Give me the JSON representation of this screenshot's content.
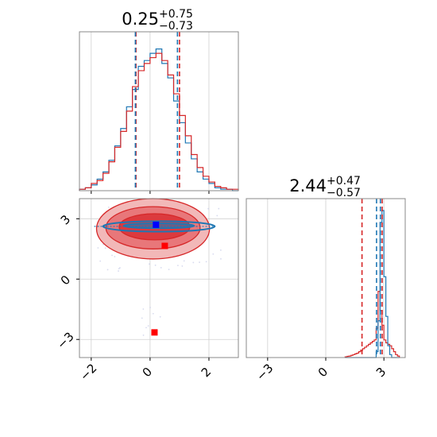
{
  "chart_data": {
    "type": "corner",
    "parameters": 2,
    "titles": [
      {
        "value": "0.25",
        "plus": "+0.75",
        "minus": "−0.73"
      },
      {
        "value": "2.44",
        "plus": "+0.47",
        "minus": "−0.57"
      }
    ],
    "x_param1": {
      "range": [
        -2.4,
        3.0
      ],
      "ticks": [
        -2,
        0,
        2
      ],
      "tick_labels": [
        "−2",
        "0",
        "2"
      ]
    },
    "y_param2": {
      "range": [
        -3.9,
        4.0
      ],
      "ticks": [
        -3,
        0,
        3
      ],
      "tick_labels": [
        "−3",
        "0",
        "3"
      ]
    },
    "x_param2": {
      "range": [
        -4.1,
        4.1
      ],
      "ticks": [
        -3,
        0,
        3
      ],
      "tick_labels": [
        "−3",
        "0",
        "3"
      ]
    },
    "grid": true,
    "colors": {
      "red": "#d62728",
      "blue": "#1f77b4",
      "red_marker": "#ff0000",
      "blue_marker": "#0000ff"
    },
    "hist1": {
      "bin_edges": [
        -2.4,
        -2.2,
        -2.0,
        -1.8,
        -1.6,
        -1.4,
        -1.2,
        -1.0,
        -0.8,
        -0.6,
        -0.4,
        -0.2,
        0.0,
        0.2,
        0.4,
        0.6,
        0.8,
        1.0,
        1.2,
        1.4,
        1.6,
        1.8,
        2.0,
        2.2,
        2.4,
        2.6,
        2.8,
        3.0
      ],
      "red": [
        0.01,
        0.02,
        0.05,
        0.07,
        0.12,
        0.2,
        0.3,
        0.41,
        0.55,
        0.72,
        0.83,
        0.88,
        0.92,
        0.95,
        0.9,
        0.8,
        0.67,
        0.52,
        0.38,
        0.25,
        0.16,
        0.1,
        0.06,
        0.03,
        0.02,
        0.01,
        0.01
      ],
      "blue": [
        0.01,
        0.02,
        0.04,
        0.08,
        0.13,
        0.21,
        0.31,
        0.43,
        0.58,
        0.7,
        0.86,
        0.9,
        0.95,
        0.98,
        0.88,
        0.78,
        0.62,
        0.47,
        0.33,
        0.22,
        0.13,
        0.08,
        0.05,
        0.02,
        0.01,
        0.01,
        0.0
      ],
      "red_quantiles": [
        -0.48,
        1.0
      ],
      "blue_quantiles": [
        -0.5,
        0.93
      ]
    },
    "hist2": {
      "bin_edges": [
        1.0,
        1.1,
        1.2,
        1.3,
        1.4,
        1.5,
        1.6,
        1.7,
        1.8,
        1.9,
        2.0,
        2.1,
        2.2,
        2.3,
        2.4,
        2.5,
        2.6,
        2.7,
        2.8,
        2.9,
        3.0,
        3.1,
        3.2,
        3.3,
        3.4,
        3.5,
        3.6,
        3.7,
        3.8
      ],
      "red": [
        0.005,
        0.008,
        0.01,
        0.015,
        0.02,
        0.025,
        0.03,
        0.04,
        0.05,
        0.06,
        0.07,
        0.08,
        0.09,
        0.1,
        0.11,
        0.12,
        0.2,
        0.45,
        0.32,
        0.22,
        0.12,
        0.1,
        0.09,
        0.08,
        0.06,
        0.04,
        0.02,
        0.01
      ],
      "blue": [
        0,
        0,
        0,
        0,
        0,
        0,
        0,
        0,
        0,
        0,
        0,
        0,
        0,
        0,
        0,
        0,
        0.04,
        0.25,
        0.92,
        1.0,
        0.55,
        0.28,
        0.08,
        0.02,
        0,
        0,
        0,
        0
      ],
      "red_quantiles": [
        1.87,
        2.91
      ],
      "blue_quantiles": [
        2.62,
        2.82
      ]
    },
    "scatter_2d": {
      "red_contours": [
        {
          "cx": 0.1,
          "cy": 2.5,
          "rx": 1.92,
          "ry": 1.5
        },
        {
          "cx": 0.1,
          "cy": 2.55,
          "rx": 1.6,
          "ry": 1.05
        },
        {
          "cx": 0.15,
          "cy": 2.6,
          "rx": 1.2,
          "ry": 0.65
        }
      ],
      "blue_contours": [
        {
          "cx": 0.3,
          "cy": 2.62,
          "rx": 1.9,
          "ry": 0.26
        },
        {
          "cx": 0.3,
          "cy": 2.65,
          "rx": 1.2,
          "ry": 0.12
        }
      ],
      "markers": [
        {
          "color": "blue",
          "x": 0.2,
          "y": 2.7
        },
        {
          "color": "red",
          "x": 0.5,
          "y": 1.65
        },
        {
          "color": "red",
          "x": 0.15,
          "y": -2.65
        }
      ]
    }
  }
}
